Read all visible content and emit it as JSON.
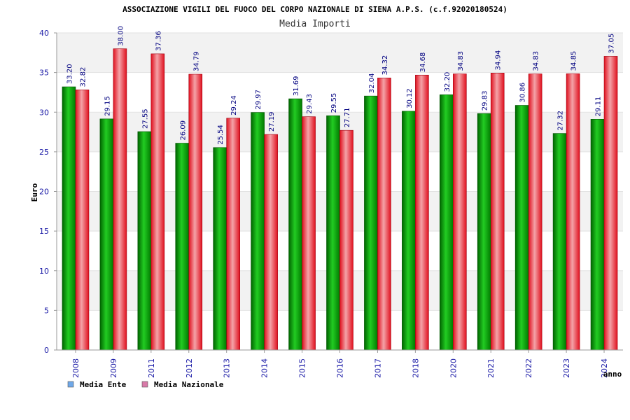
{
  "chart_data": {
    "type": "bar",
    "title": "ASSOCIAZIONE VIGILI DEL FUOCO DEL CORPO NAZIONALE DI SIENA A.P.S. (c.f.92020180524)",
    "subtitle": "Media Importi",
    "xlabel": "anno",
    "ylabel": "Euro",
    "ylim": [
      0,
      40
    ],
    "yticks": [
      0,
      5,
      10,
      15,
      20,
      25,
      30,
      35,
      40
    ],
    "grid": true,
    "legend_position": "bottom-left",
    "categories": [
      "2008",
      "2009",
      "2011",
      "2012",
      "2013",
      "2014",
      "2015",
      "2016",
      "2017",
      "2018",
      "2020",
      "2021",
      "2022",
      "2023",
      "2024"
    ],
    "series": [
      {
        "name": "Media Ente",
        "color": "#00a000",
        "legend_color": "#6fa8e8",
        "values": [
          33.2,
          29.15,
          27.55,
          26.09,
          25.54,
          29.97,
          31.69,
          29.55,
          32.04,
          30.12,
          32.2,
          29.83,
          30.86,
          27.32,
          29.11
        ],
        "labels": [
          "33.20",
          "29.15",
          "27.55",
          "26.09",
          "25.54",
          "29.97",
          "31.69",
          "29.55",
          "32.04",
          "30.12",
          "32.20",
          "29.83",
          "30.86",
          "27.32",
          "29.11"
        ]
      },
      {
        "name": "Media Nazionale",
        "color": "#e8202a",
        "legend_color": "#d87aa8",
        "values": [
          32.82,
          38.0,
          37.36,
          34.79,
          29.24,
          27.19,
          29.43,
          27.71,
          34.32,
          34.68,
          34.83,
          34.94,
          34.83,
          34.85,
          37.05
        ],
        "labels": [
          "32.82",
          "38.00",
          "37.36",
          "34.79",
          "29.24",
          "27.19",
          "29.43",
          "27.71",
          "34.32",
          "34.68",
          "34.83",
          "34.94",
          "34.83",
          "34.85",
          "37.05"
        ]
      }
    ]
  }
}
